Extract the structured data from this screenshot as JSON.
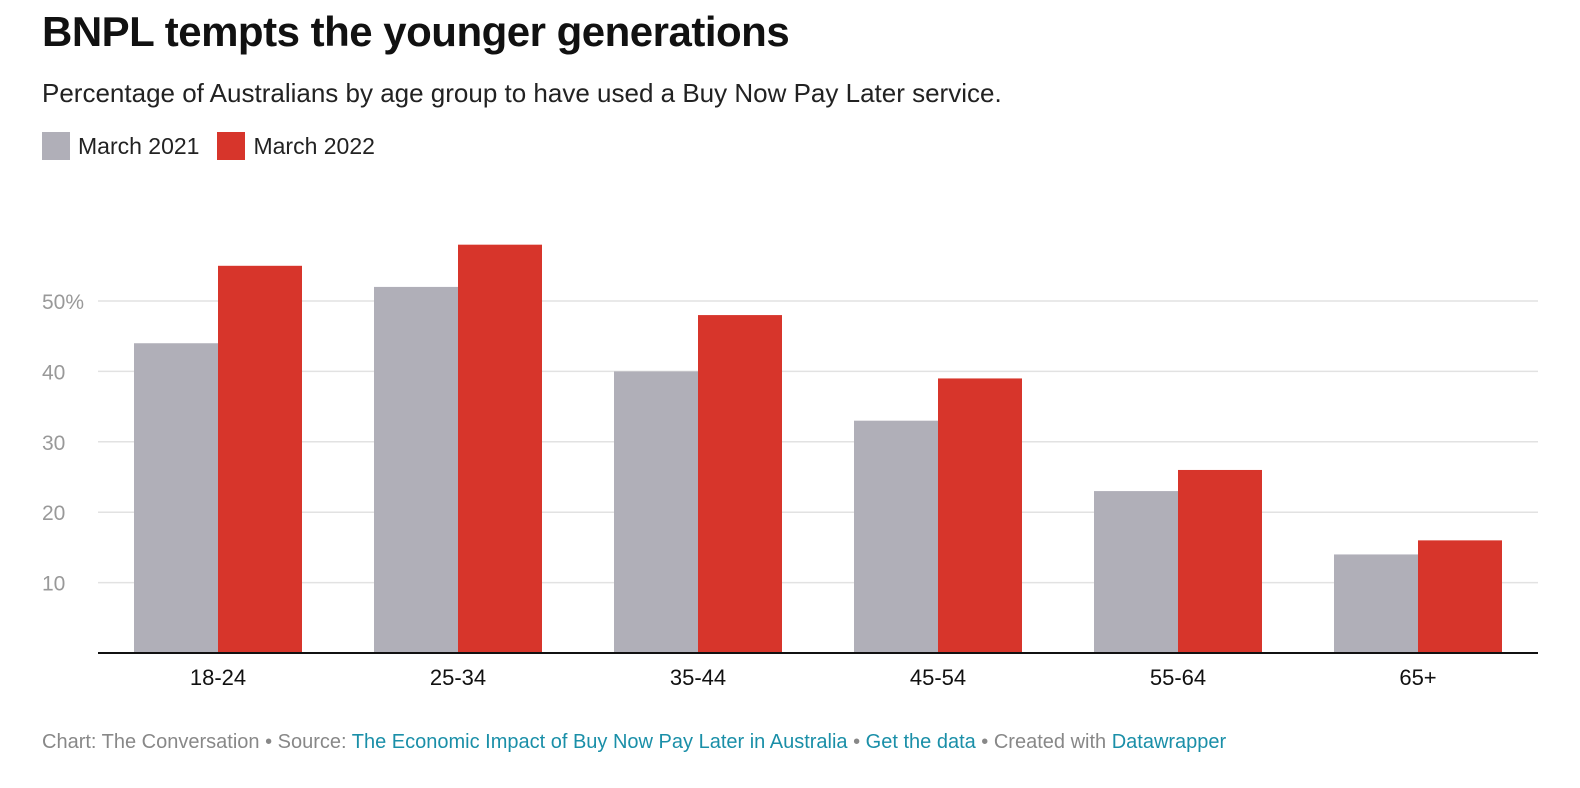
{
  "title": "BNPL tempts the younger generations",
  "subtitle": "Percentage of Australians by age group to have used a Buy Now Pay Later service.",
  "colors": {
    "series_2021": "#b0afb8",
    "series_2022": "#d7352b",
    "grid": "#e2e2e2",
    "axis": "#111111",
    "tick": "#999999",
    "link": "#1a8fa8"
  },
  "chart_data": {
    "type": "bar",
    "categories": [
      "18-24",
      "25-34",
      "35-44",
      "45-54",
      "55-64",
      "65+"
    ],
    "series": [
      {
        "name": "March 2021",
        "values": [
          44,
          52,
          40,
          33,
          23,
          14
        ]
      },
      {
        "name": "March 2022",
        "values": [
          55,
          58,
          48,
          39,
          26,
          16
        ]
      }
    ],
    "yticks": [
      10,
      20,
      30,
      40,
      50
    ],
    "ytick_labels": [
      "10",
      "20",
      "30",
      "40",
      "50%"
    ],
    "ylim": [
      0,
      60
    ],
    "xlabel": "",
    "ylabel": "",
    "legend": "top-left"
  },
  "footer": {
    "chart_prefix": "Chart: The Conversation • Source: ",
    "source_link": "The Economic Impact of Buy Now Pay Later in Australia",
    "sep1": " • ",
    "data_link": "Get the data",
    "sep2": " • Created with ",
    "tool_link": "Datawrapper"
  }
}
